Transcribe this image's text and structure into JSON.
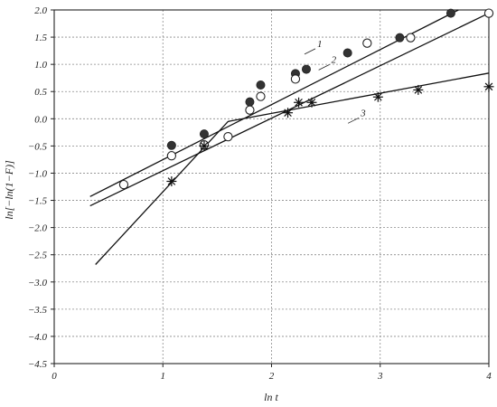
{
  "chart_data": {
    "type": "scatter",
    "xlabel": "ln t",
    "ylabel": "ln[−ln(1−F)]",
    "xlim": [
      0,
      4
    ],
    "ylim": [
      -4.5,
      2.0
    ],
    "xticks": [
      "0",
      "1",
      "2",
      "3",
      "4"
    ],
    "yticks": [
      "2.0",
      "1.5",
      "1.0",
      "0.5",
      "0.0",
      "−0.5",
      "−1.0",
      "−1.5",
      "−2.0",
      "−2.5",
      "−3.0",
      "−3.5",
      "−4.0",
      "−4.5"
    ],
    "grid": true,
    "series": [
      {
        "label": "1",
        "marker": "filled-circle",
        "points": [
          [
            1.08,
            -0.49
          ],
          [
            1.38,
            -0.28
          ],
          [
            1.8,
            0.31
          ],
          [
            1.9,
            0.62
          ],
          [
            2.22,
            0.83
          ],
          [
            2.32,
            0.91
          ],
          [
            2.7,
            1.21
          ],
          [
            3.18,
            1.49
          ],
          [
            3.65,
            1.94
          ]
        ],
        "fit": [
          [
            0.33,
            -1.43
          ],
          [
            3.72,
            2.0
          ]
        ]
      },
      {
        "label": "2",
        "marker": "open-circle",
        "points": [
          [
            0.64,
            -1.21
          ],
          [
            1.08,
            -0.68
          ],
          [
            1.38,
            -0.48
          ],
          [
            1.6,
            -0.33
          ],
          [
            1.8,
            0.16
          ],
          [
            1.9,
            0.41
          ],
          [
            2.22,
            0.73
          ],
          [
            2.88,
            1.39
          ],
          [
            3.28,
            1.49
          ],
          [
            4.0,
            1.94
          ]
        ],
        "fit": [
          [
            0.33,
            -1.6
          ],
          [
            4.0,
            1.94
          ]
        ]
      },
      {
        "label": "3",
        "marker": "asterisk",
        "points": [
          [
            1.08,
            -1.15
          ],
          [
            1.38,
            -0.5
          ],
          [
            2.15,
            0.11
          ],
          [
            2.25,
            0.3
          ],
          [
            2.37,
            0.3
          ],
          [
            2.98,
            0.4
          ],
          [
            3.35,
            0.53
          ],
          [
            4.0,
            0.59
          ]
        ],
        "fit": [
          [
            0.38,
            -2.68
          ],
          [
            1.6,
            -0.05
          ],
          [
            4.0,
            0.84
          ]
        ]
      }
    ],
    "series_label_positions": [
      [
        2.42,
        1.32
      ],
      [
        2.55,
        1.03
      ],
      [
        2.82,
        0.05
      ]
    ]
  }
}
